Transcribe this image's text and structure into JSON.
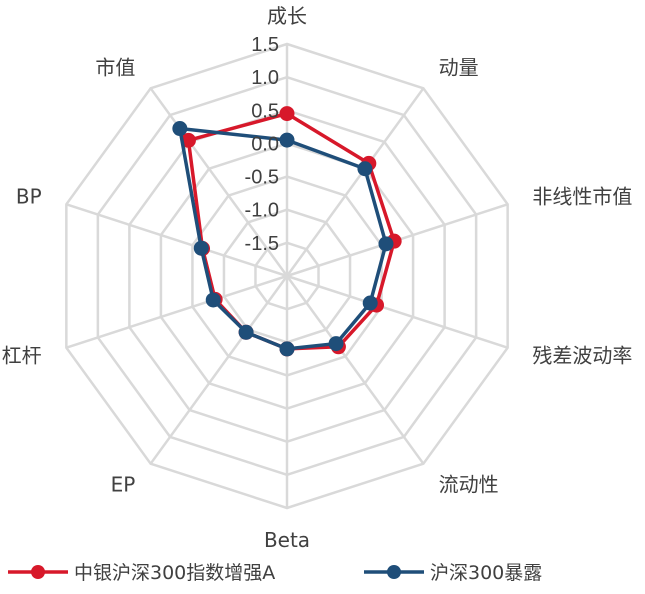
{
  "chart_data": {
    "type": "radar",
    "title": "",
    "categories": [
      "成长",
      "动量",
      "非线性市值",
      "残差波动率",
      "流动性",
      "Beta",
      "EP",
      "杠杆",
      "BP",
      "市值"
    ],
    "r_ticks": [
      "1.5",
      "1.0",
      "0.5",
      "0.0",
      "-0.5",
      "-1.0",
      "-1.5"
    ],
    "r_tick_values": [
      1.5,
      1.0,
      0.5,
      0.0,
      -0.5,
      -1.0,
      -1.5
    ],
    "rlim": [
      -2.0,
      1.5
    ],
    "grid": true,
    "legend_position": "bottom",
    "series": [
      {
        "name": "中银沪深300指数增强A",
        "color": "#D7182A",
        "values": [
          0.45,
          0.1,
          -0.3,
          -0.58,
          -0.68,
          -0.9,
          -0.95,
          -0.86,
          -0.66,
          0.53
        ]
      },
      {
        "name": "沪深300暴露",
        "color": "#1F4E79",
        "values": [
          0.05,
          0.0,
          -0.43,
          -0.68,
          -0.74,
          -0.9,
          -0.95,
          -0.83,
          -0.64,
          0.75
        ]
      }
    ]
  }
}
